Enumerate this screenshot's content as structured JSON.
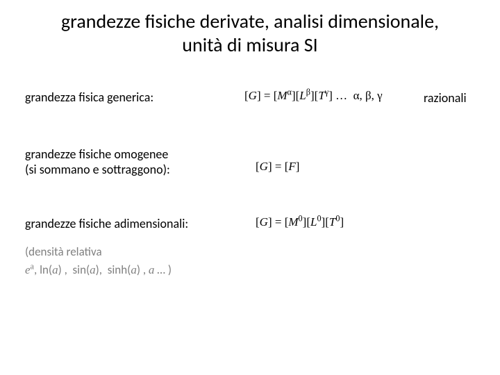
{
  "title_line1": "grandezze fisiche derivate, analisi dimensionale,",
  "title_line2": "unità di misura SI",
  "rows": {
    "generic": {
      "label": "grandezza fisica generica:",
      "formula_html": "[<i>G</i>] = [<i>M</i><span class='sup'>α</span>][<i>L</i><span class='sup'>β</span>][<i>T</i><span class='sup'>γ</span>] …&nbsp; α, β, γ",
      "trail": "razionali"
    },
    "homogeneous": {
      "label_l1": "grandezze fisiche omogenee",
      "label_l2": "(si sommano e sottraggono):",
      "formula_html": "[<i>G</i>] = [<i>F</i>]"
    },
    "adim": {
      "label": "grandezze fisiche adimensionali:",
      "formula_html": "[<i>G</i>] = [<i>M</i><span class='sup'>0</span>][<i>L</i><span class='sup'>0</span>][<i>T</i><span class='sup'>0</span>]"
    }
  },
  "examples": {
    "line1": "(densità relativa",
    "line2_html": "<span class='math'>e<span class='sup fn'>a</span></span>, <span class='fn'>ln</span>(<span class='math'>a</span>) ,&nbsp; <span class='fn'>sin</span>(<span class='math'>a</span>),&nbsp; <span class='fn'>sinh</span>(<span class='math'>a</span>) , <span class='math'>a</span> … )"
  },
  "colors": {
    "text": "#000000",
    "muted": "#7f7f7f",
    "background": "#ffffff"
  }
}
